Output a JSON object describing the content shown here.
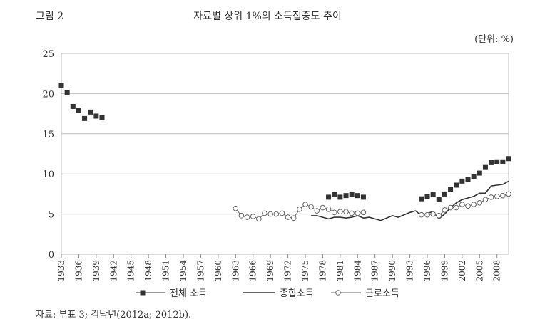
{
  "figure_label": "그림 2",
  "title": "자료별 상위 1%의 소득집중도 추이",
  "unit": "(단위: %)",
  "source": "자료: 부표 3; 김낙년(2012a; 2012b).",
  "chart_data": {
    "type": "line",
    "title": "자료별 상위 1%의 소득집중도 추이",
    "xlabel": "",
    "ylabel": "",
    "xlim": [
      1933,
      2010
    ],
    "ylim": [
      0,
      25
    ],
    "yticks": [
      0,
      5,
      10,
      15,
      20,
      25
    ],
    "xticks": [
      1933,
      1936,
      1939,
      1942,
      1945,
      1948,
      1951,
      1954,
      1957,
      1960,
      1963,
      1966,
      1969,
      1972,
      1975,
      1978,
      1981,
      1984,
      1987,
      1990,
      1993,
      1996,
      1999,
      2002,
      2005,
      2008
    ],
    "grid": true,
    "legend_position": "bottom",
    "series": [
      {
        "name": "전체 소득",
        "marker": "square",
        "line": false,
        "color": "#333333",
        "points": [
          [
            1933,
            21.0
          ],
          [
            1934,
            20.1
          ],
          [
            1935,
            18.4
          ],
          [
            1936,
            17.9
          ],
          [
            1937,
            16.9
          ],
          [
            1938,
            17.7
          ],
          [
            1939,
            17.2
          ],
          [
            1940,
            17.0
          ],
          [
            1979,
            7.1
          ],
          [
            1980,
            7.4
          ],
          [
            1981,
            7.1
          ],
          [
            1982,
            7.3
          ],
          [
            1983,
            7.4
          ],
          [
            1984,
            7.3
          ],
          [
            1985,
            7.1
          ],
          [
            1995,
            6.9
          ],
          [
            1996,
            7.2
          ],
          [
            1997,
            7.4
          ],
          [
            1998,
            6.8
          ],
          [
            1999,
            7.5
          ],
          [
            2000,
            8.1
          ],
          [
            2001,
            8.6
          ],
          [
            2002,
            9.1
          ],
          [
            2003,
            9.3
          ],
          [
            2004,
            9.7
          ],
          [
            2005,
            10.1
          ],
          [
            2006,
            10.8
          ],
          [
            2007,
            11.4
          ],
          [
            2008,
            11.5
          ],
          [
            2009,
            11.5
          ],
          [
            2010,
            11.9
          ]
        ]
      },
      {
        "name": "종합소득",
        "marker": "none",
        "line": true,
        "color": "#333333",
        "points": [
          [
            1976,
            4.8
          ],
          [
            1977,
            4.8
          ],
          [
            1978,
            4.6
          ],
          [
            1979,
            4.4
          ],
          [
            1980,
            4.6
          ],
          [
            1981,
            4.6
          ],
          [
            1982,
            4.5
          ],
          [
            1983,
            4.6
          ],
          [
            1984,
            4.8
          ],
          [
            1985,
            4.5
          ],
          [
            1986,
            4.6
          ],
          [
            1987,
            4.4
          ],
          [
            1988,
            4.2
          ],
          [
            1989,
            4.5
          ],
          [
            1990,
            4.8
          ],
          [
            1991,
            4.6
          ],
          [
            1992,
            4.9
          ],
          [
            1993,
            5.2
          ],
          [
            1994,
            5.4
          ],
          [
            1995,
            4.8
          ],
          [
            1996,
            5.1
          ],
          [
            1997,
            5.3
          ],
          [
            1998,
            4.4
          ],
          [
            1999,
            5.0
          ],
          [
            2000,
            5.8
          ],
          [
            2001,
            6.4
          ],
          [
            2002,
            6.8
          ],
          [
            2003,
            7.0
          ],
          [
            2004,
            7.2
          ],
          [
            2005,
            7.6
          ],
          [
            2006,
            7.6
          ],
          [
            2007,
            8.5
          ],
          [
            2008,
            8.6
          ],
          [
            2009,
            8.7
          ],
          [
            2010,
            9.1
          ]
        ]
      },
      {
        "name": "근로소득",
        "marker": "circle",
        "line": true,
        "color": "#666666",
        "points": [
          [
            1963,
            5.7
          ],
          [
            1964,
            4.8
          ],
          [
            1965,
            4.6
          ],
          [
            1966,
            4.7
          ],
          [
            1967,
            4.4
          ],
          [
            1968,
            5.1
          ],
          [
            1969,
            5.0
          ],
          [
            1970,
            5.0
          ],
          [
            1971,
            5.1
          ],
          [
            1972,
            4.6
          ],
          [
            1973,
            4.5
          ],
          [
            1974,
            5.6
          ],
          [
            1975,
            6.2
          ],
          [
            1976,
            5.9
          ],
          [
            1977,
            5.4
          ],
          [
            1978,
            5.8
          ],
          [
            1979,
            5.6
          ],
          [
            1980,
            5.2
          ],
          [
            1981,
            5.3
          ],
          [
            1982,
            5.3
          ],
          [
            1983,
            5.1
          ],
          [
            1984,
            5.1
          ],
          [
            1985,
            5.2
          ],
          [
            1995,
            4.9
          ],
          [
            1996,
            4.9
          ],
          [
            1997,
            5.0
          ],
          [
            1998,
            4.8
          ],
          [
            1999,
            5.5
          ],
          [
            2000,
            5.8
          ],
          [
            2001,
            5.8
          ],
          [
            2002,
            6.2
          ],
          [
            2003,
            6.0
          ],
          [
            2004,
            6.2
          ],
          [
            2005,
            6.4
          ],
          [
            2006,
            6.8
          ],
          [
            2007,
            7.1
          ],
          [
            2008,
            7.2
          ],
          [
            2009,
            7.3
          ],
          [
            2010,
            7.5
          ]
        ]
      }
    ]
  }
}
